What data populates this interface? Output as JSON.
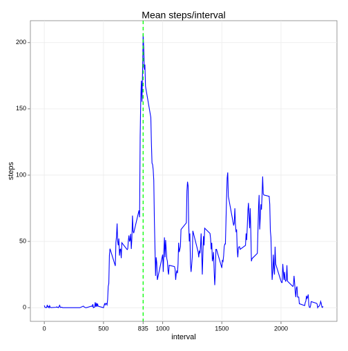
{
  "chart_data": {
    "type": "line",
    "title": "Mean steps/interval",
    "x_label": "interval",
    "y_label": "steps",
    "x": [
      0,
      5,
      10,
      15,
      20,
      25,
      30,
      35,
      40,
      45,
      50,
      55,
      100,
      105,
      110,
      115,
      120,
      125,
      130,
      135,
      140,
      145,
      150,
      155,
      200,
      230,
      300,
      330,
      335,
      340,
      345,
      350,
      355,
      400,
      405,
      410,
      415,
      420,
      425,
      430,
      435,
      440,
      445,
      450,
      455,
      500,
      505,
      510,
      515,
      520,
      525,
      530,
      535,
      540,
      545,
      550,
      555,
      600,
      605,
      610,
      615,
      620,
      625,
      630,
      635,
      640,
      645,
      650,
      655,
      700,
      705,
      710,
      715,
      720,
      725,
      730,
      735,
      740,
      745,
      750,
      755,
      800,
      805,
      810,
      815,
      820,
      825,
      830,
      835,
      840,
      845,
      850,
      855,
      900,
      905,
      910,
      915,
      920,
      925,
      930,
      935,
      940,
      945,
      950,
      955,
      1000,
      1005,
      1010,
      1015,
      1020,
      1025,
      1030,
      1035,
      1040,
      1045,
      1050,
      1055,
      1100,
      1105,
      1110,
      1115,
      1120,
      1125,
      1130,
      1135,
      1140,
      1145,
      1150,
      1155,
      1200,
      1205,
      1210,
      1215,
      1220,
      1225,
      1230,
      1235,
      1240,
      1245,
      1250,
      1255,
      1300,
      1305,
      1310,
      1315,
      1320,
      1325,
      1330,
      1335,
      1340,
      1345,
      1350,
      1355,
      1400,
      1405,
      1410,
      1415,
      1420,
      1425,
      1430,
      1435,
      1440,
      1445,
      1450,
      1455,
      1500,
      1505,
      1510,
      1515,
      1520,
      1525,
      1530,
      1535,
      1540,
      1545,
      1550,
      1555,
      1600,
      1605,
      1610,
      1615,
      1620,
      1625,
      1630,
      1635,
      1640,
      1645,
      1650,
      1655,
      1700,
      1705,
      1710,
      1715,
      1720,
      1725,
      1730,
      1735,
      1740,
      1745,
      1750,
      1755,
      1800,
      1805,
      1810,
      1815,
      1820,
      1825,
      1830,
      1835,
      1840,
      1845,
      1850,
      1855,
      1900,
      1905,
      1910,
      1915,
      1920,
      1925,
      1930,
      1935,
      1940,
      1945,
      1950,
      1955,
      2000,
      2005,
      2010,
      2015,
      2020,
      2025,
      2030,
      2035,
      2040,
      2045,
      2050,
      2055,
      2100,
      2105,
      2110,
      2115,
      2120,
      2125,
      2130,
      2135,
      2140,
      2145,
      2150,
      2155,
      2200,
      2205,
      2210,
      2215,
      2220,
      2225,
      2230,
      2235,
      2240,
      2245,
      2250,
      2255,
      2300,
      2305,
      2310,
      2315,
      2320,
      2325,
      2330,
      2335,
      2340,
      2345,
      2350,
      2355
    ],
    "series": [
      {
        "name": "steps",
        "color": "#0000ff",
        "values": [
          1.7,
          0.3,
          0.1,
          0.2,
          0.1,
          2.1,
          0.5,
          0.9,
          0,
          1.5,
          0.3,
          0.1,
          0.3,
          0.7,
          0.2,
          0.3,
          0,
          1.1,
          1.8,
          0.2,
          0.2,
          0.4,
          0.3,
          0,
          0,
          0,
          0,
          1.2,
          0.6,
          0.5,
          0.1,
          0,
          0,
          1.2,
          0.9,
          2.6,
          0,
          0.3,
          0.4,
          4.1,
          0.7,
          3.5,
          0.8,
          3.1,
          1.1,
          0,
          1.6,
          3,
          2.2,
          3.3,
          3,
          2.1,
          6.1,
          16,
          18.3,
          39.5,
          44.5,
          31.5,
          49.3,
          53.8,
          63.5,
          50,
          47.1,
          52.2,
          39.3,
          44,
          44.2,
          37.4,
          49,
          43.8,
          44.4,
          50.5,
          54.5,
          49.9,
          51,
          55.7,
          44.3,
          52.3,
          69.5,
          57.8,
          56.2,
          73.4,
          68.2,
          129.4,
          157.5,
          171.2,
          155.4,
          177.3,
          206.2,
          195.9,
          179.6,
          183.4,
          167,
          143.5,
          124,
          109,
          108,
          104,
          96,
          66,
          45,
          24,
          38,
          34,
          21,
          40,
          27,
          42,
          53,
          38,
          51,
          44,
          37,
          35,
          28,
          25,
          32,
          31,
          29,
          21,
          26,
          28,
          26,
          33,
          49,
          42,
          44,
          46,
          59,
          64,
          88,
          95,
          92,
          63,
          50,
          56,
          33,
          27,
          32,
          38,
          58,
          42,
          38,
          43,
          41,
          46,
          56,
          42,
          25,
          40,
          54,
          47,
          60,
          56,
          52,
          44,
          49,
          35,
          37,
          42,
          28,
          17,
          26,
          44,
          44,
          30,
          36,
          35,
          39,
          46,
          48,
          48,
          65,
          83,
          98,
          102,
          84,
          62,
          64,
          75,
          63,
          57,
          59,
          44,
          38,
          45,
          46,
          46,
          44,
          47,
          56,
          51,
          61,
          73,
          79,
          69,
          60,
          75,
          57,
          35,
          37,
          41,
          58,
          75,
          85,
          59,
          68,
          78,
          74,
          85,
          99,
          86,
          85,
          84,
          78,
          58,
          53,
          36,
          21,
          27,
          40,
          30,
          25,
          46,
          33,
          20,
          19,
          19,
          33,
          27,
          21,
          27,
          21,
          20,
          21,
          32,
          20,
          16,
          17,
          24,
          19,
          12,
          8,
          15,
          16,
          8,
          8,
          8,
          3,
          1.6,
          4,
          5,
          9,
          7,
          8,
          10,
          2,
          0.3,
          0.1,
          1.6,
          4.6,
          3.3,
          2.8,
          0,
          0.8,
          1,
          1.6,
          2.6,
          4.7,
          3.3,
          0.6,
          0.2,
          1.1
        ]
      }
    ],
    "vline": {
      "x": 835,
      "color": "#00ff00"
    },
    "xlim": [
      -117.75,
      2472.75
    ],
    "xticks": [
      0,
      500,
      835,
      1000,
      1500,
      2000
    ],
    "ylim": [
      -10.3,
      216.5
    ],
    "yticks": [
      0,
      50,
      100,
      150,
      200
    ],
    "grid": true
  }
}
